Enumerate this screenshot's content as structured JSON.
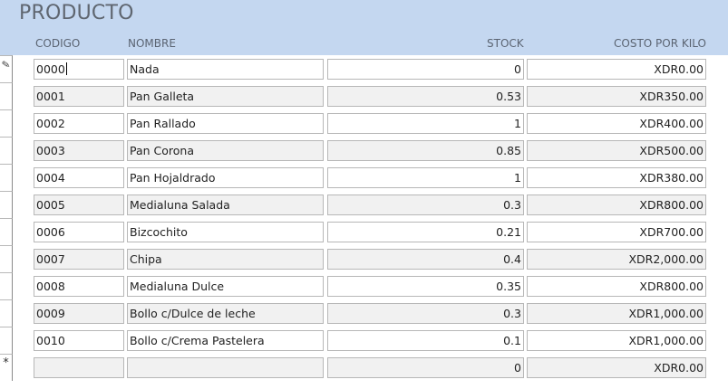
{
  "form": {
    "title": "PRODUCTO",
    "columns": {
      "codigo": "CODIGO",
      "nombre": "NOMBRE",
      "stock": "STOCK",
      "costo": "COSTO POR KILO"
    },
    "rows": [
      {
        "codigo": "0000",
        "nombre": "Nada",
        "stock": "0",
        "costo": "XDR0.00"
      },
      {
        "codigo": "0001",
        "nombre": " Pan Galleta",
        "stock": "0.53",
        "costo": "XDR350.00"
      },
      {
        "codigo": "0002",
        "nombre": "Pan Rallado",
        "stock": "1",
        "costo": "XDR400.00"
      },
      {
        "codigo": "0003",
        "nombre": "Pan Corona",
        "stock": "0.85",
        "costo": "XDR500.00"
      },
      {
        "codigo": "0004",
        "nombre": "Pan Hojaldrado",
        "stock": "1",
        "costo": "XDR380.00"
      },
      {
        "codigo": "0005",
        "nombre": "Medialuna Salada",
        "stock": "0.3",
        "costo": "XDR800.00"
      },
      {
        "codigo": "0006",
        "nombre": "Bizcochito",
        "stock": "0.21",
        "costo": "XDR700.00"
      },
      {
        "codigo": "0007",
        "nombre": "Chipa",
        "stock": "0.4",
        "costo": "XDR2,000.00"
      },
      {
        "codigo": "0008",
        "nombre": "Medialuna Dulce",
        "stock": "0.35",
        "costo": "XDR800.00"
      },
      {
        "codigo": "0009",
        "nombre": "Bollo c/Dulce de leche",
        "stock": "0.3",
        "costo": "XDR1,000.00"
      },
      {
        "codigo": "0010",
        "nombre": "Bollo c/Crema Pastelera",
        "stock": "0.1",
        "costo": "XDR1,000.00"
      }
    ],
    "new_row": {
      "codigo": "",
      "nombre": "",
      "stock": "0",
      "costo": "XDR0.00"
    },
    "indicators": {
      "editing": "✎",
      "new_record": "*"
    }
  }
}
